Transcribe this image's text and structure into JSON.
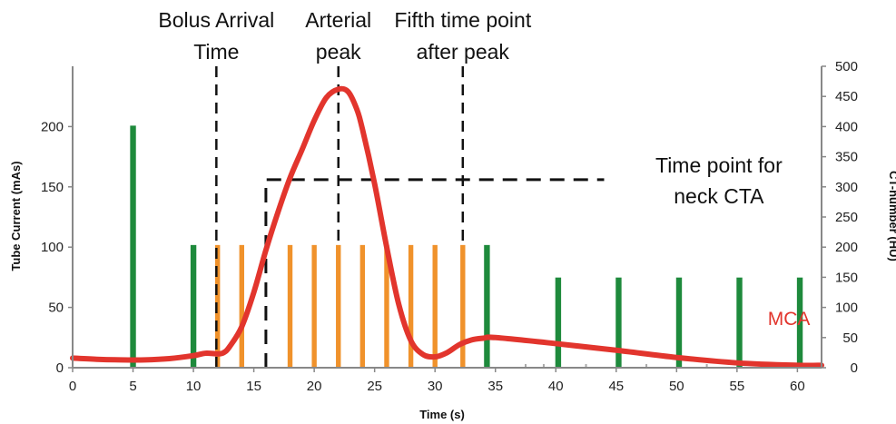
{
  "chart_data": {
    "type": "bar",
    "xlabel": "Time (s)",
    "ylabel_left": "Tube Current (mAs)",
    "ylabel_right": "CT-number (HU)",
    "xlim": [
      0,
      62
    ],
    "ylim_left": [
      0,
      250
    ],
    "ylim_right": [
      0,
      500
    ],
    "x_ticks": [
      0,
      5,
      10,
      15,
      20,
      25,
      30,
      35,
      40,
      45,
      50,
      55,
      60
    ],
    "y_ticks_left": [
      0,
      50,
      100,
      150,
      200
    ],
    "y_ticks_right": [
      0,
      50,
      100,
      150,
      200,
      250,
      300,
      350,
      400,
      450,
      500
    ],
    "grid": false,
    "colors": {
      "green": "#1e8a3c",
      "orange": "#f0922b",
      "red": "#e2352d",
      "dash": "#111111",
      "axis": "#888888"
    },
    "bars": [
      {
        "x": 5,
        "value": 201,
        "color": "green"
      },
      {
        "x": 10,
        "value": 102,
        "color": "green"
      },
      {
        "x": 12,
        "value": 102,
        "color": "orange"
      },
      {
        "x": 14,
        "value": 102,
        "color": "orange"
      },
      {
        "x": 18,
        "value": 102,
        "color": "orange"
      },
      {
        "x": 20,
        "value": 102,
        "color": "orange"
      },
      {
        "x": 22,
        "value": 102,
        "color": "orange"
      },
      {
        "x": 24,
        "value": 102,
        "color": "orange"
      },
      {
        "x": 26,
        "value": 102,
        "color": "orange"
      },
      {
        "x": 28,
        "value": 102,
        "color": "orange"
      },
      {
        "x": 30,
        "value": 102,
        "color": "orange"
      },
      {
        "x": 32.3,
        "value": 102,
        "color": "orange"
      },
      {
        "x": 34.3,
        "value": 102,
        "color": "green"
      },
      {
        "x": 40.2,
        "value": 75,
        "color": "green"
      },
      {
        "x": 45.2,
        "value": 75,
        "color": "green"
      },
      {
        "x": 50.2,
        "value": 75,
        "color": "green"
      },
      {
        "x": 55.2,
        "value": 75,
        "color": "green"
      },
      {
        "x": 60.2,
        "value": 75,
        "color": "green"
      }
    ],
    "series": [
      {
        "name": "MCA",
        "axis": "right",
        "points": [
          [
            0,
            16
          ],
          [
            2,
            14
          ],
          [
            4,
            13
          ],
          [
            6,
            13
          ],
          [
            8,
            15
          ],
          [
            10,
            20
          ],
          [
            11,
            24
          ],
          [
            12,
            23
          ],
          [
            12.5,
            25
          ],
          [
            13,
            35
          ],
          [
            14,
            68
          ],
          [
            15,
            125
          ],
          [
            16,
            195
          ],
          [
            17,
            258
          ],
          [
            18,
            315
          ],
          [
            19,
            362
          ],
          [
            20,
            410
          ],
          [
            21,
            448
          ],
          [
            22,
            462
          ],
          [
            22.8,
            458
          ],
          [
            23.5,
            430
          ],
          [
            24,
            395
          ],
          [
            25,
            305
          ],
          [
            26,
            200
          ],
          [
            27,
            105
          ],
          [
            28,
            45
          ],
          [
            29,
            22
          ],
          [
            30,
            18
          ],
          [
            31,
            25
          ],
          [
            32,
            38
          ],
          [
            33,
            46
          ],
          [
            34,
            49
          ],
          [
            35,
            50
          ],
          [
            40,
            40
          ],
          [
            45,
            29
          ],
          [
            50,
            17
          ],
          [
            55,
            8
          ],
          [
            60,
            4
          ],
          [
            62,
            4
          ]
        ]
      }
    ],
    "step_line": [
      [
        16,
        0
      ],
      [
        16,
        312
      ],
      [
        44,
        312
      ]
    ],
    "vlines": [
      {
        "x": 11.9,
        "y_from": 0,
        "y_to": 250
      },
      {
        "x": 22,
        "y_from": 100,
        "y_to": 250
      },
      {
        "x": 32.3,
        "y_from": 100,
        "y_to": 250
      }
    ],
    "annotations": [
      {
        "lines": [
          "Bolus Arrival",
          "Time"
        ],
        "x": 11.9
      },
      {
        "lines": [
          "Arterial",
          "peak"
        ],
        "x": 22
      },
      {
        "lines": [
          "Fifth time point",
          "after peak"
        ],
        "x": 32.3
      },
      {
        "lines": [
          "Time point for",
          "neck CTA"
        ],
        "x": 53.5
      },
      {
        "lines": [
          "MCA"
        ],
        "x": 59.3
      }
    ]
  }
}
